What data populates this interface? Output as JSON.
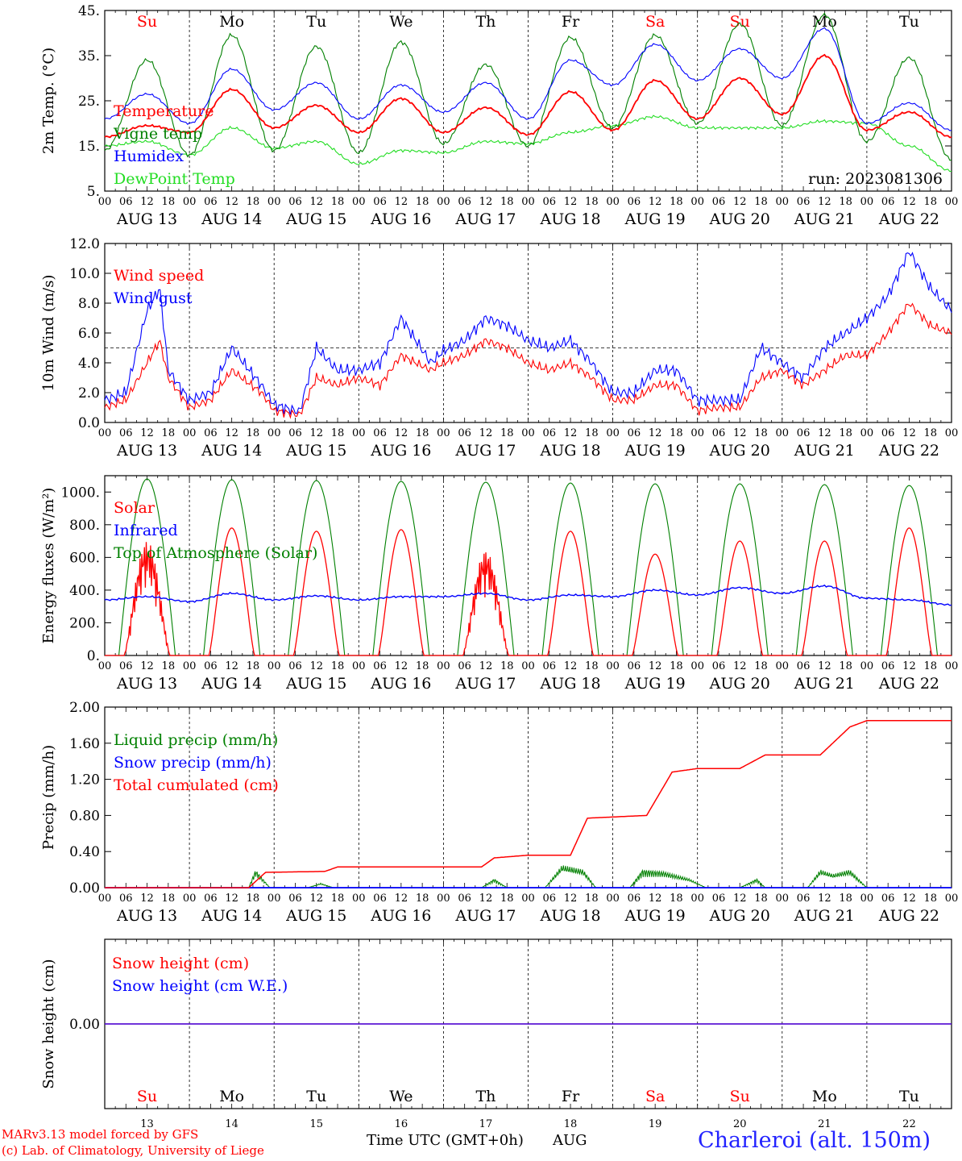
{
  "colors": {
    "temperature": "#ff0000",
    "vigne": "#008000",
    "humidex": "#0000ff",
    "dewpoint": "#22dd22",
    "wind_speed": "#ff0000",
    "wind_gust": "#0000ff",
    "solar": "#ff0000",
    "infrared": "#0000ff",
    "toa": "#008000",
    "liquid": "#008000",
    "snow_precip": "#0000ff",
    "cumulated": "#ff0000",
    "snow_height": "#ff0000",
    "snow_we": "#0000ff",
    "station": "#2222ff",
    "weekend": "#ff0000"
  },
  "days": {
    "abbr": [
      "Su",
      "Mo",
      "Tu",
      "We",
      "Th",
      "Fr",
      "Sa",
      "Su",
      "Mo",
      "Tu"
    ],
    "weekend": [
      true,
      false,
      false,
      false,
      false,
      false,
      true,
      true,
      false,
      false
    ],
    "dates": [
      "AUG 13",
      "AUG 14",
      "AUG 15",
      "AUG 16",
      "AUG 17",
      "AUG 18",
      "AUG 19",
      "AUG 20",
      "AUG 21",
      "AUG 22"
    ],
    "numbers": [
      "13",
      "14",
      "15",
      "16",
      "17",
      "18",
      "19",
      "20",
      "21",
      "22"
    ],
    "hour_ticks": [
      "00",
      "06",
      "12",
      "18"
    ],
    "final_tick": "00"
  },
  "run_label": "run: 2023081306",
  "footer": {
    "model": "MARv3.13 model forced by GFS",
    "lab": "(c) Lab. of Climatology, University of Liege",
    "xlabel": "Time UTC (GMT+0h)",
    "month": "AUG",
    "station": "Charleroi (alt. 150m)"
  },
  "chart_data": [
    {
      "type": "line",
      "ylabel": "2m Temp. (°C)",
      "ylim": [
        5,
        45
      ],
      "yticks": [
        "5.",
        "15.",
        "25.",
        "35.",
        "45."
      ],
      "x_days": [
        0,
        0.5,
        1,
        1.5,
        2,
        2.5,
        3,
        3.5,
        4,
        4.5,
        5,
        5.5,
        6,
        6.5,
        7,
        7.5,
        8,
        8.5,
        9,
        9.5,
        10
      ],
      "series": [
        {
          "name": "Temperature",
          "key": "temperature",
          "values": [
            17,
            19.5,
            18,
            27.5,
            19,
            24,
            18,
            25.5,
            18,
            23.5,
            17.5,
            27,
            18.5,
            29.5,
            21,
            30,
            22,
            35,
            18.5,
            22.5,
            17
          ]
        },
        {
          "name": "Vigne temp",
          "key": "vigne",
          "values": [
            14,
            34,
            13,
            39.5,
            14,
            37,
            13.5,
            38,
            15.5,
            33,
            15,
            39,
            19,
            39.5,
            20,
            42,
            19.5,
            44,
            16,
            34.5,
            12
          ]
        },
        {
          "name": "Humidex",
          "key": "humidex",
          "values": [
            21,
            26.5,
            20,
            32,
            23,
            29,
            21,
            28.5,
            22.5,
            29,
            21,
            34,
            28.5,
            37.5,
            29.5,
            36.5,
            30,
            41,
            20,
            24.5,
            18.5
          ]
        },
        {
          "name": "DewPoint Temp",
          "key": "dewpoint",
          "values": [
            15,
            16,
            13,
            19,
            14.5,
            16,
            11,
            14,
            13.5,
            16,
            15.5,
            18,
            19.5,
            21.5,
            19,
            19,
            19,
            20.5,
            20,
            15,
            9.5
          ]
        }
      ]
    },
    {
      "type": "line",
      "ylabel": "10m Wind (m/s)",
      "ylim": [
        0,
        12
      ],
      "yticks": [
        "0.0",
        "2.0",
        "4.0",
        "6.0",
        "8.0",
        "10.0",
        "12.0"
      ],
      "reference_line": 5,
      "x_days": [
        0,
        0.25,
        0.5,
        0.65,
        0.75,
        1,
        1.25,
        1.5,
        1.85,
        2,
        2.3,
        2.5,
        2.75,
        3,
        3.25,
        3.5,
        3.85,
        4,
        4.25,
        4.5,
        4.75,
        5,
        5.25,
        5.5,
        5.75,
        6,
        6.25,
        6.5,
        6.75,
        7,
        7.25,
        7.5,
        7.75,
        8,
        8.25,
        8.5,
        8.75,
        9,
        9.25,
        9.5,
        9.75,
        10
      ],
      "series": [
        {
          "name": "Wind speed",
          "key": "wind_speed",
          "values": [
            1,
            1.5,
            4,
            5.5,
            3,
            1,
            1.5,
            3.5,
            2,
            0.8,
            0.5,
            3,
            2.5,
            3,
            2.5,
            4.5,
            3.5,
            4,
            4.5,
            5.5,
            5,
            4,
            3.5,
            4,
            3,
            1.5,
            1.5,
            2.5,
            2.5,
            0.8,
            1,
            1,
            3,
            3.5,
            2.5,
            3.5,
            4.5,
            4.5,
            6,
            8,
            6.5,
            6
          ]
        },
        {
          "name": "Wind gust",
          "key": "wind_gust",
          "values": [
            1.5,
            2,
            7.5,
            9,
            3.5,
            1.5,
            2,
            5,
            2.5,
            1.2,
            0.7,
            5,
            3.5,
            3.5,
            4,
            7,
            4,
            4.8,
            5.5,
            7,
            6.5,
            5.5,
            5,
            5.5,
            4,
            2,
            2,
            3.5,
            3.5,
            1.5,
            1.5,
            1.5,
            5,
            4,
            3,
            5,
            6,
            7,
            8.5,
            11.5,
            9,
            7.5
          ]
        }
      ]
    },
    {
      "type": "line",
      "ylabel": "Energy fluxes (W/m²)",
      "ylim": [
        0,
        1100
      ],
      "yticks": [
        "0.",
        "200.",
        "400.",
        "600.",
        "800.",
        "1000."
      ],
      "series": [
        {
          "name": "Solar",
          "key": "solar",
          "daily_peak": [
            700,
            780,
            760,
            770,
            640,
            760,
            620,
            700,
            700,
            780
          ],
          "dip": [
            true,
            false,
            false,
            false,
            true,
            false,
            false,
            false,
            false,
            false
          ]
        },
        {
          "name": "Infrared",
          "key": "infrared",
          "x_days": [
            0,
            0.5,
            1,
            1.5,
            2,
            2.5,
            3,
            3.5,
            4,
            4.5,
            5,
            5.5,
            6,
            6.5,
            7,
            7.5,
            8,
            8.5,
            9,
            9.5,
            10
          ],
          "values": [
            340,
            360,
            330,
            380,
            340,
            365,
            340,
            360,
            360,
            380,
            340,
            370,
            360,
            400,
            370,
            415,
            380,
            425,
            350,
            340,
            310
          ]
        },
        {
          "name": "Top of Atmosphere (Solar)",
          "key": "toa",
          "daily_peak": [
            1080,
            1075,
            1070,
            1065,
            1060,
            1055,
            1050,
            1050,
            1045,
            1040
          ]
        }
      ]
    },
    {
      "type": "line",
      "ylabel": "Precip (mm/h)",
      "ylim": [
        0,
        2
      ],
      "yticks": [
        "0.00",
        "0.40",
        "0.80",
        "1.20",
        "1.60",
        "2.00"
      ],
      "series": [
        {
          "name": "Liquid precip (mm/h)",
          "key": "liquid",
          "x_days": [
            0,
            1.7,
            1.78,
            1.85,
            1.95,
            2.4,
            2.55,
            2.7,
            4.45,
            4.6,
            4.75,
            5.2,
            5.4,
            5.65,
            5.8,
            6.2,
            6.35,
            6.6,
            6.9,
            7.1,
            7.5,
            7.7,
            7.8,
            8.3,
            8.45,
            8.6,
            8.8,
            9,
            10
          ],
          "values": [
            0,
            0,
            0.2,
            0.12,
            0,
            0,
            0.05,
            0,
            0,
            0.1,
            0,
            0,
            0.25,
            0.2,
            0,
            0,
            0.2,
            0.18,
            0.1,
            0,
            0,
            0.1,
            0,
            0,
            0.2,
            0.15,
            0.2,
            0,
            0
          ]
        },
        {
          "name": "Snow precip (mm/h)",
          "key": "snow_precip",
          "x_days": [
            0,
            10
          ],
          "values": [
            0,
            0
          ]
        },
        {
          "name": "Total cumulated (cm)",
          "key": "cumulated",
          "x_days": [
            0,
            1.7,
            1.9,
            2.6,
            2.75,
            4.45,
            4.6,
            5,
            5.5,
            5.7,
            6.4,
            6.7,
            7,
            7.5,
            7.8,
            8.45,
            8.8,
            9,
            10
          ],
          "values": [
            0,
            0,
            0.17,
            0.18,
            0.23,
            0.23,
            0.33,
            0.36,
            0.36,
            0.77,
            0.8,
            1.28,
            1.32,
            1.32,
            1.47,
            1.47,
            1.78,
            1.85,
            1.85
          ]
        }
      ]
    },
    {
      "type": "line",
      "ylabel": "Snow height (cm)",
      "yticks": [
        "0.00"
      ],
      "series": [
        {
          "name": "Snow height (cm)",
          "key": "snow_height",
          "x_days": [
            0,
            10
          ],
          "values": [
            0,
            0
          ]
        },
        {
          "name": "Snow height (cm W.E.)",
          "key": "snow_we",
          "x_days": [
            0,
            10
          ],
          "values": [
            0,
            0
          ]
        }
      ]
    }
  ]
}
